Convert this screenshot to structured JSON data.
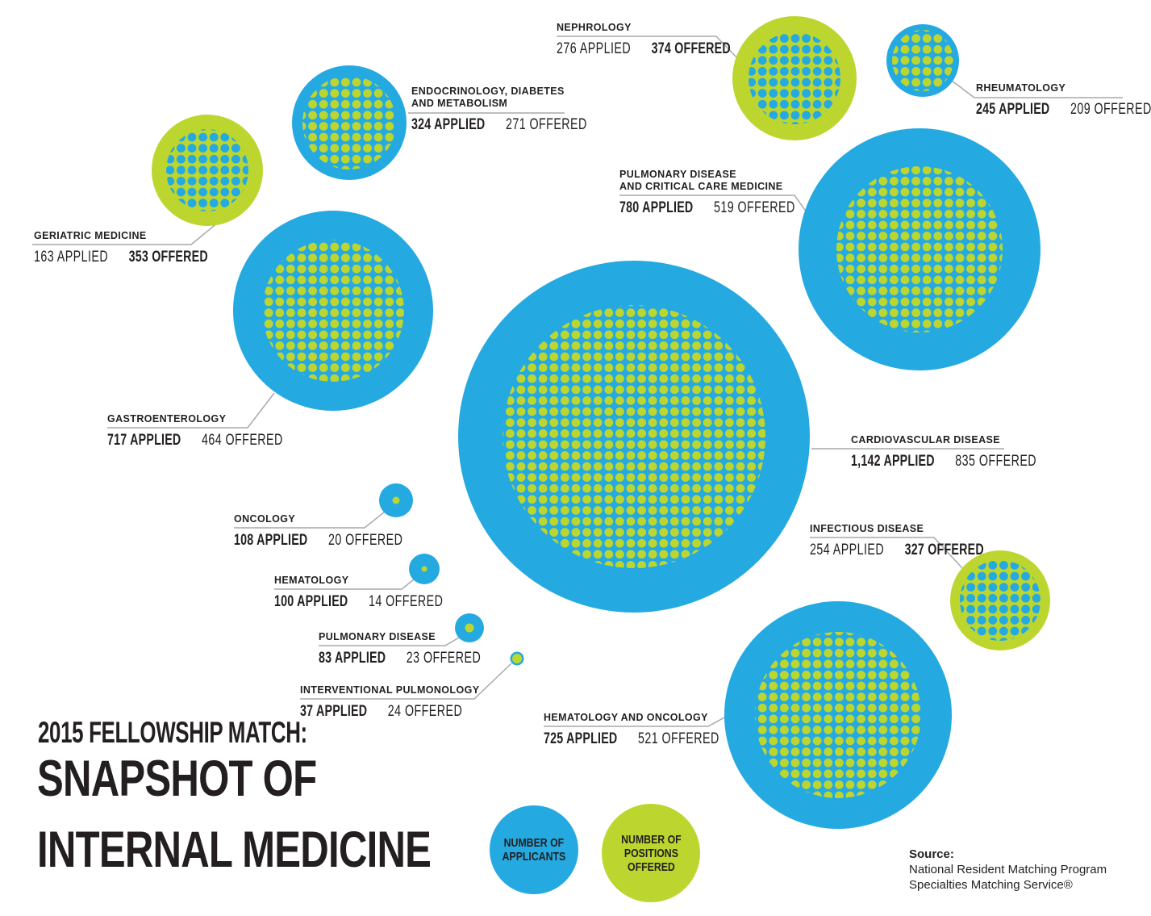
{
  "page": {
    "title_kicker": "2015 FELLOWSHIP MATCH:",
    "title_line1": "SNAPSHOT OF",
    "title_line2": "INTERNAL MEDICINE"
  },
  "source": {
    "label": "Source:",
    "line1": "National Resident Matching Program",
    "line2": "Specialties Matching Service®"
  },
  "colors": {
    "applicants_blue": "#24A9E1",
    "positions_green": "#BDD62F",
    "text": "#231F20",
    "leader_line": "#A7A9AC"
  },
  "chart_data": {
    "type": "bubble",
    "title": "2015 Fellowship Match: Snapshot of Internal Medicine",
    "legend": [
      {
        "id": "applicants",
        "lines": [
          "NUMBER OF",
          "APPLICANTS"
        ],
        "color": "#24A9E1"
      },
      {
        "id": "positions",
        "lines": [
          "NUMBER OF",
          "POSITIONS",
          "OFFERED"
        ],
        "color": "#BDD62F"
      }
    ],
    "note": "Outer circle = larger value (blue = applicants, green = positions offered); inner dotted disc = smaller value.",
    "specialties": [
      {
        "id": "geriatric",
        "name_lines": [
          "GERIATRIC MEDICINE"
        ],
        "applied": 163,
        "offered": 353,
        "applied_text": "163 APPLIED",
        "offered_text": "353 OFFERED",
        "emphasis": "offered"
      },
      {
        "id": "endocrinology",
        "name_lines": [
          "ENDOCRINOLOGY, DIABETES",
          "AND METABOLISM"
        ],
        "applied": 324,
        "offered": 271,
        "applied_text": "324 APPLIED",
        "offered_text": "271 OFFERED",
        "emphasis": "applied"
      },
      {
        "id": "nephrology",
        "name_lines": [
          "NEPHROLOGY"
        ],
        "applied": 276,
        "offered": 374,
        "applied_text": "276 APPLIED",
        "offered_text": "374 OFFERED",
        "emphasis": "offered"
      },
      {
        "id": "rheumatology",
        "name_lines": [
          "RHEUMATOLOGY"
        ],
        "applied": 245,
        "offered": 209,
        "applied_text": "245 APPLIED",
        "offered_text": "209 OFFERED",
        "emphasis": "applied"
      },
      {
        "id": "pulmonary_ccm",
        "name_lines": [
          "PULMONARY DISEASE",
          "AND CRITICAL CARE MEDICINE"
        ],
        "applied": 780,
        "offered": 519,
        "applied_text": "780 APPLIED",
        "offered_text": "519 OFFERED",
        "emphasis": "applied"
      },
      {
        "id": "gastroenterology",
        "name_lines": [
          "GASTROENTEROLOGY"
        ],
        "applied": 717,
        "offered": 464,
        "applied_text": "717 APPLIED",
        "offered_text": "464 OFFERED",
        "emphasis": "applied"
      },
      {
        "id": "cardiovascular",
        "name_lines": [
          "CARDIOVASCULAR DISEASE"
        ],
        "applied": 1142,
        "offered": 835,
        "applied_text": "1,142 APPLIED",
        "offered_text": "835 OFFERED",
        "emphasis": "applied"
      },
      {
        "id": "infectious",
        "name_lines": [
          "INFECTIOUS DISEASE"
        ],
        "applied": 254,
        "offered": 327,
        "applied_text": "254 APPLIED",
        "offered_text": "327 OFFERED",
        "emphasis": "offered"
      },
      {
        "id": "hematology_oncology",
        "name_lines": [
          "HEMATOLOGY AND ONCOLOGY"
        ],
        "applied": 725,
        "offered": 521,
        "applied_text": "725 APPLIED",
        "offered_text": "521 OFFERED",
        "emphasis": "applied"
      },
      {
        "id": "oncology",
        "name_lines": [
          "ONCOLOGY"
        ],
        "applied": 108,
        "offered": 20,
        "applied_text": "108 APPLIED",
        "offered_text": "20 OFFERED",
        "emphasis": "applied"
      },
      {
        "id": "hematology",
        "name_lines": [
          "HEMATOLOGY"
        ],
        "applied": 100,
        "offered": 14,
        "applied_text": "100 APPLIED",
        "offered_text": "14 OFFERED",
        "emphasis": "applied"
      },
      {
        "id": "pulmonary",
        "name_lines": [
          "PULMONARY DISEASE"
        ],
        "applied": 83,
        "offered": 23,
        "applied_text": "83 APPLIED",
        "offered_text": "23 OFFERED",
        "emphasis": "applied"
      },
      {
        "id": "interventional_pulmonology",
        "name_lines": [
          "INTERVENTIONAL PULMONOLOGY"
        ],
        "applied": 37,
        "offered": 24,
        "applied_text": "37 APPLIED",
        "offered_text": "24 OFFERED",
        "emphasis": "applied"
      }
    ]
  }
}
